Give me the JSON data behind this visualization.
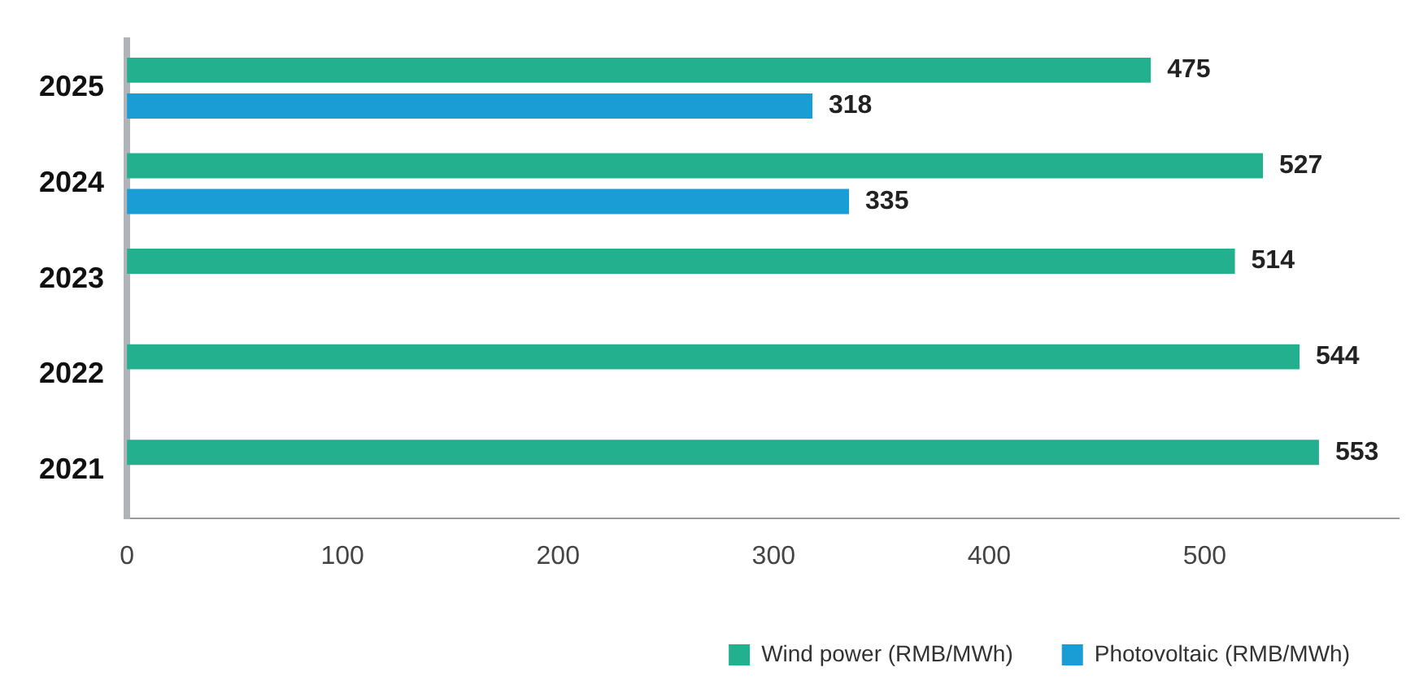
{
  "chart_data": {
    "type": "bar",
    "orientation": "horizontal",
    "categories": [
      "2025",
      "2024",
      "2023",
      "2022",
      "2021"
    ],
    "series": [
      {
        "name": "Wind power (RMB/MWh)",
        "color": "#22b08f",
        "values": [
          475,
          527,
          514,
          544,
          553
        ]
      },
      {
        "name": "Photovoltaic (RMB/MWh)",
        "color": "#1a9dd4",
        "values": [
          318,
          335,
          null,
          null,
          null
        ]
      }
    ],
    "xlim": [
      0,
      590
    ],
    "xticks": [
      0,
      100,
      200,
      300,
      400,
      500
    ],
    "grid": false,
    "legend": "bottom right",
    "data_labels": true
  }
}
